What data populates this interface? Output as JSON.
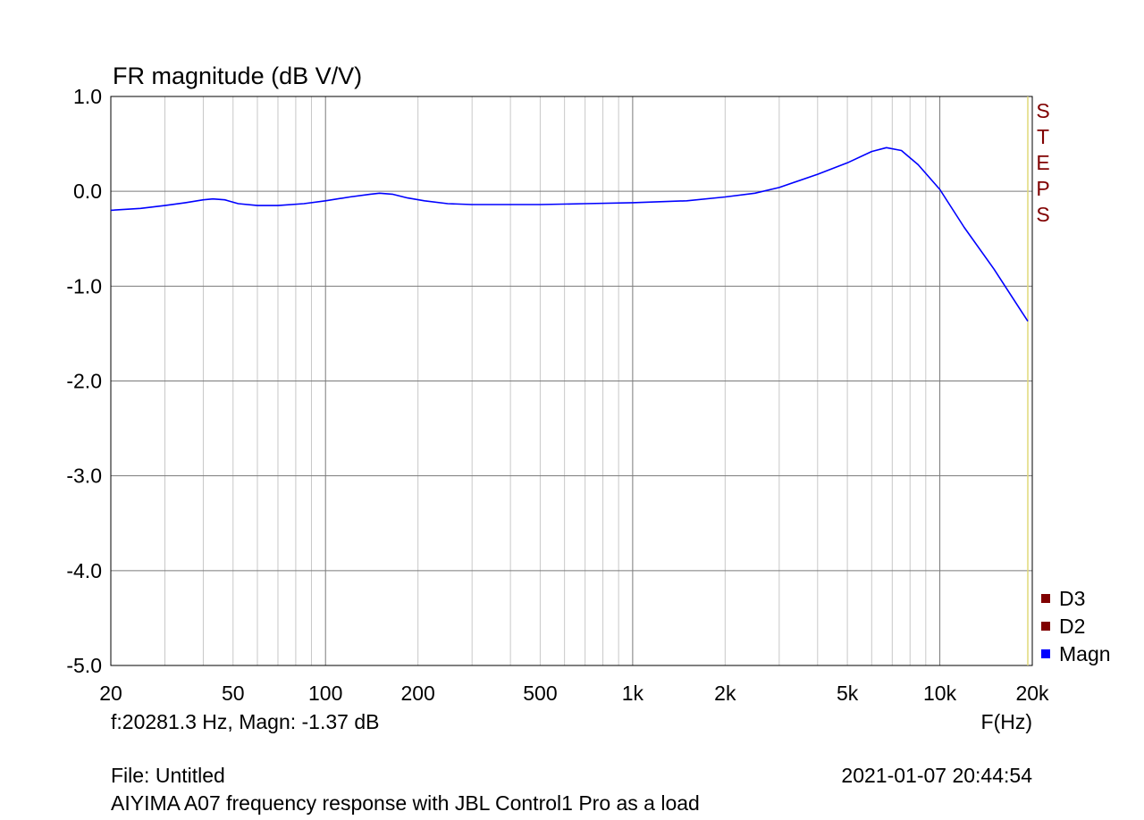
{
  "chart_data": {
    "type": "line",
    "title": "FR magnitude (dB V/V)",
    "xlabel": "F(Hz)",
    "ylabel": "",
    "x_scale": "log",
    "xlim": [
      20,
      20000
    ],
    "ylim": [
      -5,
      1
    ],
    "x_ticks": [
      {
        "value": 20,
        "label": "20"
      },
      {
        "value": 50,
        "label": "50"
      },
      {
        "value": 100,
        "label": "100"
      },
      {
        "value": 200,
        "label": "200"
      },
      {
        "value": 500,
        "label": "500"
      },
      {
        "value": 1000,
        "label": "1k"
      },
      {
        "value": 2000,
        "label": "2k"
      },
      {
        "value": 5000,
        "label": "5k"
      },
      {
        "value": 10000,
        "label": "10k"
      },
      {
        "value": 20000,
        "label": "20k"
      }
    ],
    "y_ticks": [
      {
        "value": 1,
        "label": "1.0"
      },
      {
        "value": 0,
        "label": "0.0"
      },
      {
        "value": -1,
        "label": "-1.0"
      },
      {
        "value": -2,
        "label": "-2.0"
      },
      {
        "value": -3,
        "label": "-3.0"
      },
      {
        "value": -4,
        "label": "-4.0"
      },
      {
        "value": -5,
        "label": "-5.0"
      }
    ],
    "grid": true,
    "legend_position": "bottom-right",
    "legend": [
      {
        "name": "D3",
        "color": "#800000"
      },
      {
        "name": "D2",
        "color": "#800000"
      },
      {
        "name": "Magn",
        "color": "#0000ff"
      }
    ],
    "side_label": "STEPS",
    "series": [
      {
        "name": "Magn",
        "color": "#0000ff",
        "x": [
          20,
          25,
          30,
          35,
          40,
          43,
          47,
          52,
          60,
          70,
          85,
          100,
          120,
          140,
          150,
          165,
          185,
          210,
          250,
          300,
          400,
          500,
          700,
          1000,
          1500,
          2000,
          2500,
          3000,
          4000,
          5000,
          6000,
          6700,
          7500,
          8500,
          10000,
          12000,
          15000,
          20281
        ],
        "y": [
          -0.2,
          -0.18,
          -0.15,
          -0.12,
          -0.09,
          -0.08,
          -0.09,
          -0.13,
          -0.15,
          -0.15,
          -0.13,
          -0.1,
          -0.06,
          -0.03,
          -0.02,
          -0.03,
          -0.07,
          -0.1,
          -0.13,
          -0.14,
          -0.14,
          -0.14,
          -0.13,
          -0.12,
          -0.1,
          -0.06,
          -0.02,
          0.04,
          0.18,
          0.3,
          0.42,
          0.46,
          0.43,
          0.28,
          0.02,
          -0.38,
          -0.82,
          -1.37
        ]
      }
    ]
  },
  "cursor_readout": "f:20281.3 Hz, Magn: -1.37 dB",
  "file_label": "File: Untitled",
  "timestamp": "2021-01-07 20:44:54",
  "description": "AIYIMA A07 frequency response with JBL Control1 Pro as a load"
}
